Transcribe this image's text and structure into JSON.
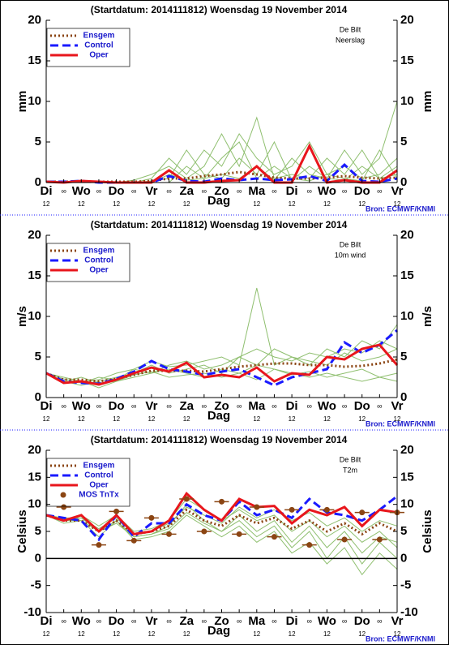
{
  "chart_data": [
    {
      "type": "line",
      "title": "(Startdatum: 2014111812)   Woensdag  19 November  2014",
      "station": "De Bilt",
      "variable": "Neerslag",
      "ylabel": "mm",
      "y2label": "mm",
      "xlabel": "Dag",
      "source": "Bron: ECMWF/KNMI",
      "legend": "upper left",
      "ylim": [
        0,
        20
      ],
      "yticks": [
        0,
        5,
        10,
        15,
        20
      ],
      "xlim": [
        0,
        240
      ],
      "xticks": [
        {
          "value": 0,
          "label": "Di"
        },
        {
          "value": 12,
          "label": "∞"
        },
        {
          "value": 24,
          "label": "Wo"
        },
        {
          "value": 36,
          "label": "∞"
        },
        {
          "value": 48,
          "label": "Do"
        },
        {
          "value": 60,
          "label": "∞"
        },
        {
          "value": 72,
          "label": "Vr"
        },
        {
          "value": 84,
          "label": "∞"
        },
        {
          "value": 96,
          "label": "Za"
        },
        {
          "value": 108,
          "label": "∞"
        },
        {
          "value": 120,
          "label": "Zo"
        },
        {
          "value": 132,
          "label": "∞"
        },
        {
          "value": 144,
          "label": "Ma"
        },
        {
          "value": 156,
          "label": "∞"
        },
        {
          "value": 168,
          "label": "Di"
        },
        {
          "value": 180,
          "label": "∞"
        },
        {
          "value": 192,
          "label": "Wo"
        },
        {
          "value": 204,
          "label": "∞"
        },
        {
          "value": 216,
          "label": "Do"
        },
        {
          "value": 228,
          "label": "∞"
        },
        {
          "value": 240,
          "label": "Vr"
        }
      ],
      "xsublabels": [
        {
          "value": 0,
          "label": "12"
        },
        {
          "value": 24,
          "label": "12"
        },
        {
          "value": 48,
          "label": "12"
        },
        {
          "value": 72,
          "label": "12"
        },
        {
          "value": 96,
          "label": "12"
        },
        {
          "value": 144,
          "label": "12"
        },
        {
          "value": 168,
          "label": "12"
        },
        {
          "value": 192,
          "label": "12"
        },
        {
          "value": 216,
          "label": "12"
        },
        {
          "value": 240,
          "label": "12"
        }
      ],
      "x": [
        0,
        12,
        24,
        36,
        48,
        60,
        72,
        84,
        96,
        108,
        120,
        132,
        144,
        156,
        168,
        180,
        192,
        204,
        216,
        228,
        240
      ],
      "member_color": "#8fbf6f",
      "members": [
        [
          0,
          0,
          0.2,
          0,
          0,
          0,
          0.5,
          3,
          1,
          4,
          2,
          6,
          3,
          1,
          2,
          5,
          1,
          2,
          0.5,
          1,
          3
        ],
        [
          0,
          0.1,
          0.1,
          0,
          0,
          0.3,
          1,
          2,
          0.5,
          2,
          6,
          2,
          8,
          0.5,
          1,
          0.5,
          3,
          1,
          4,
          0.5,
          1
        ],
        [
          0,
          0,
          0,
          0.1,
          0,
          0,
          0.2,
          0.5,
          4,
          1,
          0.5,
          3,
          1,
          5,
          0.3,
          2,
          0.5,
          4,
          1,
          3,
          10
        ],
        [
          0,
          0,
          0.1,
          0,
          0.1,
          0,
          0,
          1,
          0.3,
          0.5,
          1,
          0.5,
          2,
          0.3,
          3,
          1,
          0.5,
          0.3,
          2,
          0.5,
          2
        ],
        [
          0,
          0,
          0,
          0,
          0,
          0,
          0,
          0,
          2,
          0.5,
          3,
          5,
          0.5,
          2,
          0.5,
          0.2,
          1,
          0.5,
          0.2,
          4,
          0.5
        ]
      ],
      "series": [
        {
          "name": "Ensgem",
          "color": "#8b4513",
          "style": "dotted",
          "values": [
            0.1,
            0.1,
            0.1,
            0.1,
            0.1,
            0.1,
            0.2,
            0.5,
            0.5,
            0.8,
            1.0,
            1.3,
            1.0,
            0.6,
            0.5,
            0.5,
            0.6,
            0.8,
            0.6,
            0.5,
            0.6
          ]
        },
        {
          "name": "Control",
          "color": "#1a1aff",
          "style": "dashed",
          "values": [
            0.1,
            0.1,
            0.2,
            0,
            0,
            0,
            0,
            0.8,
            0.2,
            0.1,
            0.5,
            0.3,
            0.5,
            0.3,
            0.4,
            0.8,
            0.2,
            2.2,
            0.2,
            0.1,
            0.5
          ]
        },
        {
          "name": "Oper",
          "color": "#e8161c",
          "style": "solid",
          "values": [
            0.1,
            0,
            0.2,
            0.1,
            0,
            0,
            0,
            1.5,
            0,
            0,
            0.2,
            0.3,
            2.0,
            0,
            0,
            4.5,
            0,
            0.3,
            0,
            0,
            1.5
          ]
        }
      ]
    },
    {
      "type": "line",
      "title": "(Startdatum: 2014111812)   Woensdag  19 November  2014",
      "station": "De Bilt",
      "variable": "10m wind",
      "ylabel": "m/s",
      "y2label": "m/s",
      "xlabel": "Dag",
      "source": "Bron: ECMWF/KNMI",
      "legend": "upper left",
      "ylim": [
        0,
        20
      ],
      "yticks": [
        0,
        5,
        10,
        15,
        20
      ],
      "xlim": [
        0,
        240
      ],
      "xticks": [
        {
          "value": 0,
          "label": "Di"
        },
        {
          "value": 12,
          "label": "∞"
        },
        {
          "value": 24,
          "label": "Wo"
        },
        {
          "value": 36,
          "label": "∞"
        },
        {
          "value": 48,
          "label": "Do"
        },
        {
          "value": 60,
          "label": "∞"
        },
        {
          "value": 72,
          "label": "Vr"
        },
        {
          "value": 84,
          "label": "∞"
        },
        {
          "value": 96,
          "label": "Za"
        },
        {
          "value": 108,
          "label": "∞"
        },
        {
          "value": 120,
          "label": "Zo"
        },
        {
          "value": 132,
          "label": "∞"
        },
        {
          "value": 144,
          "label": "Ma"
        },
        {
          "value": 156,
          "label": "∞"
        },
        {
          "value": 168,
          "label": "Di"
        },
        {
          "value": 180,
          "label": "∞"
        },
        {
          "value": 192,
          "label": "Wo"
        },
        {
          "value": 204,
          "label": "∞"
        },
        {
          "value": 216,
          "label": "Do"
        },
        {
          "value": 228,
          "label": "∞"
        },
        {
          "value": 240,
          "label": "Vr"
        }
      ],
      "xsublabels": [
        {
          "value": 0,
          "label": "12"
        },
        {
          "value": 24,
          "label": "12"
        },
        {
          "value": 48,
          "label": "12"
        },
        {
          "value": 72,
          "label": "12"
        },
        {
          "value": 96,
          "label": "12"
        },
        {
          "value": 144,
          "label": "12"
        },
        {
          "value": 168,
          "label": "12"
        },
        {
          "value": 192,
          "label": "12"
        },
        {
          "value": 216,
          "label": "12"
        },
        {
          "value": 240,
          "label": "12"
        }
      ],
      "x": [
        0,
        12,
        24,
        36,
        48,
        60,
        72,
        84,
        96,
        108,
        120,
        132,
        144,
        156,
        168,
        180,
        192,
        204,
        216,
        228,
        240
      ],
      "member_color": "#8fbf6f",
      "members": [
        [
          3,
          2,
          1.5,
          2,
          2.5,
          3,
          4,
          3,
          3.5,
          4,
          3,
          5,
          4,
          6,
          5,
          4,
          6,
          5,
          7,
          6,
          9
        ],
        [
          3,
          1.8,
          2,
          1.2,
          2,
          2.5,
          3,
          3.5,
          3,
          2.5,
          3.5,
          3,
          4,
          3.5,
          3,
          2.5,
          3,
          2.5,
          2,
          2.5,
          3
        ],
        [
          3,
          2.3,
          1.8,
          2.5,
          2.2,
          3.5,
          3,
          4,
          4.5,
          3.5,
          4,
          5,
          6,
          5,
          4.5,
          5.5,
          5,
          6,
          5.5,
          7,
          6
        ],
        [
          3,
          2,
          2.5,
          1.8,
          2,
          2.8,
          3.2,
          2.5,
          2.8,
          3,
          2.5,
          3,
          2.2,
          3.5,
          2.8,
          3.2,
          2.5,
          3,
          3.5,
          2.5,
          2
        ],
        [
          3,
          2.5,
          2,
          2.2,
          3,
          3.5,
          4.5,
          3.8,
          4,
          4.5,
          5,
          4,
          13.5,
          4,
          5,
          4.5,
          4,
          5.5,
          4.5,
          5,
          6
        ]
      ],
      "series": [
        {
          "name": "Ensgem",
          "color": "#8b4513",
          "style": "dotted",
          "values": [
            3,
            2.2,
            2.2,
            2,
            2.3,
            2.8,
            3.3,
            3.3,
            3.3,
            3.2,
            3.5,
            3.8,
            4,
            4.2,
            4.2,
            4,
            4,
            3.8,
            3.9,
            4.2,
            4.7
          ]
        },
        {
          "name": "Control",
          "color": "#1a1aff",
          "style": "dashed",
          "values": [
            3,
            2,
            1.8,
            1.7,
            2.3,
            3.2,
            4.5,
            3.5,
            3.2,
            2.8,
            3.2,
            3.5,
            2.5,
            1.5,
            2.5,
            3,
            3.5,
            6.8,
            5.5,
            6.5,
            8.3
          ]
        },
        {
          "name": "Oper",
          "color": "#e8161c",
          "style": "solid",
          "values": [
            3,
            1.8,
            2,
            1.6,
            2.2,
            3,
            3.7,
            3.2,
            4.3,
            2.5,
            2.8,
            2.5,
            3.7,
            2,
            3,
            2.8,
            5,
            4.7,
            6,
            6.5,
            4
          ]
        }
      ]
    },
    {
      "type": "line",
      "title": "(Startdatum: 2014111812)   Woensdag  19 November  2014",
      "station": "De Bilt",
      "variable": "T2m",
      "ylabel": "Celsius",
      "y2label": "Celsius",
      "xlabel": "Dag",
      "source": "Bron: ECMWF/KNMI",
      "legend": "upper left",
      "zero_line": true,
      "ylim": [
        -10,
        20
      ],
      "yticks": [
        -10,
        -5,
        0,
        5,
        10,
        15,
        20
      ],
      "xlim": [
        0,
        240
      ],
      "xticks": [
        {
          "value": 0,
          "label": "Di"
        },
        {
          "value": 12,
          "label": "∞"
        },
        {
          "value": 24,
          "label": "Wo"
        },
        {
          "value": 36,
          "label": "∞"
        },
        {
          "value": 48,
          "label": "Do"
        },
        {
          "value": 60,
          "label": "∞"
        },
        {
          "value": 72,
          "label": "Vr"
        },
        {
          "value": 84,
          "label": "∞"
        },
        {
          "value": 96,
          "label": "Za"
        },
        {
          "value": 108,
          "label": "∞"
        },
        {
          "value": 120,
          "label": "Zo"
        },
        {
          "value": 132,
          "label": "∞"
        },
        {
          "value": 144,
          "label": "Ma"
        },
        {
          "value": 156,
          "label": "∞"
        },
        {
          "value": 168,
          "label": "Di"
        },
        {
          "value": 180,
          "label": "∞"
        },
        {
          "value": 192,
          "label": "Wo"
        },
        {
          "value": 204,
          "label": "∞"
        },
        {
          "value": 216,
          "label": "Do"
        },
        {
          "value": 228,
          "label": "∞"
        },
        {
          "value": 240,
          "label": "Vr"
        }
      ],
      "xsublabels": [
        {
          "value": 0,
          "label": "12"
        },
        {
          "value": 24,
          "label": "12"
        },
        {
          "value": 48,
          "label": "12"
        },
        {
          "value": 72,
          "label": "12"
        },
        {
          "value": 96,
          "label": "12"
        },
        {
          "value": 144,
          "label": "12"
        },
        {
          "value": 168,
          "label": "12"
        },
        {
          "value": 192,
          "label": "12"
        },
        {
          "value": 216,
          "label": "12"
        },
        {
          "value": 240,
          "label": "12"
        }
      ],
      "x": [
        0,
        12,
        24,
        36,
        48,
        60,
        72,
        84,
        96,
        108,
        120,
        132,
        144,
        156,
        168,
        180,
        192,
        204,
        216,
        228,
        240
      ],
      "member_color": "#8fbf6f",
      "members": [
        [
          8,
          7,
          7.5,
          5,
          7,
          4,
          4.5,
          6,
          10,
          7,
          5,
          8,
          5,
          7,
          3,
          6,
          2,
          5,
          1,
          4,
          3
        ],
        [
          8,
          7,
          8,
          6,
          8,
          5,
          5.5,
          7,
          11,
          9,
          7,
          9,
          7,
          8,
          5,
          7,
          4,
          6,
          3,
          5,
          2
        ],
        [
          8,
          6.5,
          7,
          4,
          7,
          3.5,
          4,
          5,
          8,
          6,
          4,
          6,
          3,
          5,
          1,
          3,
          -1,
          2,
          -3,
          1,
          -2
        ],
        [
          8,
          7.5,
          7.5,
          5.5,
          7.5,
          4.5,
          5,
          6.5,
          9.5,
          8,
          6.5,
          9.5,
          7.5,
          9,
          7,
          8.5,
          6,
          7.5,
          5,
          7,
          6
        ],
        [
          8,
          7,
          7,
          5,
          6.5,
          4,
          4.5,
          5.5,
          8.5,
          6.5,
          5,
          7,
          4,
          6,
          2,
          5,
          0,
          4,
          -1,
          3,
          0
        ]
      ],
      "series": [
        {
          "name": "Ensgem",
          "color": "#8b4513",
          "style": "dotted",
          "values": [
            8,
            7,
            7,
            5,
            7,
            4.5,
            5,
            6,
            9,
            7,
            6,
            8,
            6.5,
            7.5,
            5.5,
            7,
            5,
            6.5,
            4.5,
            6.5,
            5
          ]
        },
        {
          "name": "Control",
          "color": "#1a1aff",
          "style": "dashed",
          "values": [
            8,
            7.5,
            7,
            3.5,
            8,
            4,
            6.5,
            6.5,
            10,
            8,
            7,
            10.5,
            8,
            9,
            7.5,
            11,
            8.5,
            8,
            7,
            9,
            11.5
          ]
        },
        {
          "name": "Oper",
          "color": "#e8161c",
          "style": "solid",
          "values": [
            8,
            7,
            8,
            5,
            8,
            4.5,
            5,
            7,
            12,
            9,
            7,
            11,
            9.5,
            9.7,
            6.5,
            9,
            8,
            9.5,
            6,
            9,
            8.5
          ]
        }
      ],
      "points": {
        "name": "MOS TnTx",
        "color": "#8b4513",
        "x": [
          12,
          36,
          48,
          60,
          72,
          84,
          96,
          108,
          120,
          132,
          144,
          156,
          168,
          180,
          192,
          204,
          216,
          228,
          240
        ],
        "values": [
          9.5,
          2.5,
          8.7,
          3.3,
          7.5,
          4.5,
          11,
          5,
          10.5,
          4.5,
          9.5,
          4,
          9,
          2.5,
          9,
          3.5,
          8.5,
          3.5,
          8.5
        ]
      }
    }
  ]
}
